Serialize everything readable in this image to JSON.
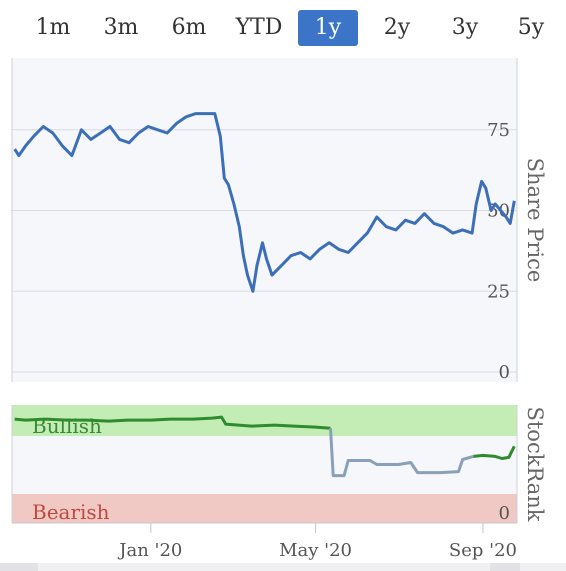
{
  "range_selector": {
    "buttons": [
      {
        "label": "1m"
      },
      {
        "label": "3m"
      },
      {
        "label": "6m"
      },
      {
        "label": "YTD"
      },
      {
        "label": "1y"
      },
      {
        "label": "2y"
      },
      {
        "label": "3y"
      },
      {
        "label": "5y"
      }
    ],
    "active": "1y"
  },
  "colors": {
    "price_line": "#3c6fb8",
    "rank_bull_line": "#2e8b2e",
    "rank_neutral_line": "#8aa0b8",
    "bullish_zone": "#c3edb4",
    "bearish_zone": "#f0c9c4",
    "plot_bg": "#f6f7fb",
    "active_button": "#3c75c7"
  },
  "chart_data": [
    {
      "type": "line",
      "ylabel": "Share Price",
      "ylim": [
        0,
        100
      ],
      "yticks": [
        0,
        25,
        50,
        75
      ],
      "series": [
        {
          "x": [
            "2019-09-23",
            "2019-09-26",
            "2019-10-01",
            "2019-10-07",
            "2019-10-14",
            "2019-10-21",
            "2019-10-28",
            "2019-11-04",
            "2019-11-11",
            "2019-11-18",
            "2019-11-25",
            "2019-12-02",
            "2019-12-09",
            "2019-12-16",
            "2019-12-23",
            "2019-12-30",
            "2020-01-06",
            "2020-01-13",
            "2020-01-20",
            "2020-01-27",
            "2020-02-03",
            "2020-02-10",
            "2020-02-17",
            "2020-02-21",
            "2020-02-24",
            "2020-02-27",
            "2020-03-02",
            "2020-03-06",
            "2020-03-09",
            "2020-03-12",
            "2020-03-16",
            "2020-03-19",
            "2020-03-23",
            "2020-03-26",
            "2020-03-30",
            "2020-04-06",
            "2020-04-13",
            "2020-04-20",
            "2020-04-27",
            "2020-05-04",
            "2020-05-11",
            "2020-05-18",
            "2020-05-25",
            "2020-06-01",
            "2020-06-08",
            "2020-06-15",
            "2020-06-22",
            "2020-06-29",
            "2020-07-06",
            "2020-07-13",
            "2020-07-20",
            "2020-07-27",
            "2020-08-03",
            "2020-08-10",
            "2020-08-17",
            "2020-08-24",
            "2020-08-27",
            "2020-08-31",
            "2020-09-03",
            "2020-09-07",
            "2020-09-10",
            "2020-09-14",
            "2020-09-18",
            "2020-09-21",
            "2020-09-24"
          ],
          "values": [
            69,
            67,
            70,
            73,
            76,
            74,
            70,
            67,
            75,
            72,
            74,
            76,
            72,
            71,
            74,
            76,
            75,
            74,
            77,
            79,
            80,
            80,
            80,
            73,
            60,
            58,
            52,
            45,
            36,
            30,
            25,
            33,
            40,
            35,
            30,
            33,
            36,
            37,
            35,
            38,
            40,
            38,
            37,
            40,
            43,
            48,
            45,
            44,
            47,
            46,
            49,
            46,
            45,
            43,
            44,
            43,
            52,
            59,
            57,
            50,
            52,
            50,
            48,
            46,
            53
          ]
        }
      ]
    },
    {
      "type": "line",
      "ylabel": "StockRank",
      "ylim": [
        0,
        100
      ],
      "yticks": [
        0
      ],
      "annotations": [
        "Bullish",
        "Bearish"
      ],
      "xticks": [
        "Jan '20",
        "May '20",
        "Sep '20"
      ],
      "series": [
        {
          "x": [
            "2019-09-23",
            "2019-10-01",
            "2019-10-15",
            "2019-11-01",
            "2019-11-15",
            "2019-12-01",
            "2019-12-15",
            "2020-01-01",
            "2020-01-15",
            "2020-02-01",
            "2020-02-15",
            "2020-02-22",
            "2020-02-25",
            "2020-03-15",
            "2020-04-01",
            "2020-04-15",
            "2020-05-01",
            "2020-05-12"
          ],
          "values": [
            93,
            92,
            93,
            92,
            92,
            91,
            92,
            92,
            93,
            93,
            94,
            95,
            88,
            86,
            87,
            86,
            85,
            84
          ]
        },
        {
          "x": [
            "2020-05-12",
            "2020-05-14",
            "2020-05-22",
            "2020-05-25",
            "2020-06-10",
            "2020-06-15",
            "2020-07-01",
            "2020-07-10",
            "2020-07-15",
            "2020-08-01",
            "2020-08-14",
            "2020-08-17",
            "2020-08-25"
          ],
          "values": [
            84,
            37,
            37,
            52,
            52,
            48,
            48,
            50,
            40,
            40,
            41,
            53,
            56
          ]
        },
        {
          "x": [
            "2020-08-25",
            "2020-09-01",
            "2020-09-10",
            "2020-09-15",
            "2020-09-20",
            "2020-09-24"
          ],
          "values": [
            56,
            57,
            56,
            54,
            55,
            66
          ]
        }
      ]
    }
  ]
}
